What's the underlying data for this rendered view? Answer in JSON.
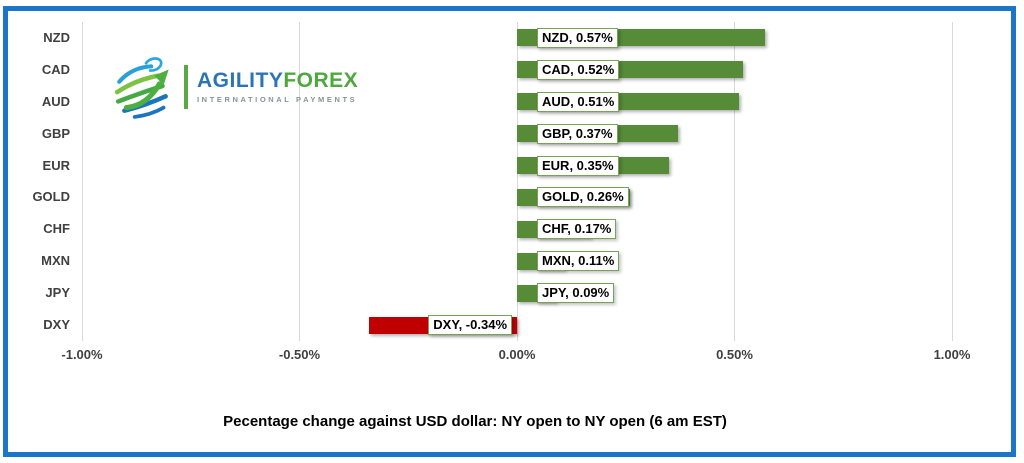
{
  "frame": {
    "border_color": "#1b75c8"
  },
  "logo": {
    "brand_part1": "AGILITY",
    "brand_part2": "FOREX",
    "tagline": "INTERNATIONAL PAYMENTS",
    "colors": {
      "blue": "#2b74b8",
      "green": "#4fa83d",
      "gray": "#8b9196"
    }
  },
  "chart_data": {
    "type": "bar",
    "orientation": "horizontal",
    "title": "Pecentage change against USD dollar:  NY open to NY open  (6 am EST)",
    "categories": [
      "NZD",
      "CAD",
      "AUD",
      "GBP",
      "EUR",
      "GOLD",
      "CHF",
      "MXN",
      "JPY",
      "DXY"
    ],
    "values": [
      0.57,
      0.52,
      0.51,
      0.37,
      0.35,
      0.26,
      0.17,
      0.11,
      0.09,
      -0.34
    ],
    "data_labels": [
      "NZD, 0.57%",
      "CAD, 0.52%",
      "AUD, 0.51%",
      "GBP, 0.37%",
      "EUR, 0.35%",
      "GOLD, 0.26%",
      "CHF, 0.17%",
      "MXN, 0.11%",
      "JPY, 0.09%",
      "DXY, -0.34%"
    ],
    "x_ticks": [
      "-1.00%",
      "-0.50%",
      "0.00%",
      "0.50%",
      "1.00%"
    ],
    "x_tick_values": [
      -1,
      -0.5,
      0,
      0.5,
      1
    ],
    "xlim": [
      -1,
      1
    ],
    "grid": "vertical",
    "legend": "none",
    "positive_color": "#568b38",
    "negative_color": "#c00000",
    "label_border_color": "#76a35a",
    "gridline_color": "#d9d9d9",
    "axis_text_color": "#404040"
  }
}
